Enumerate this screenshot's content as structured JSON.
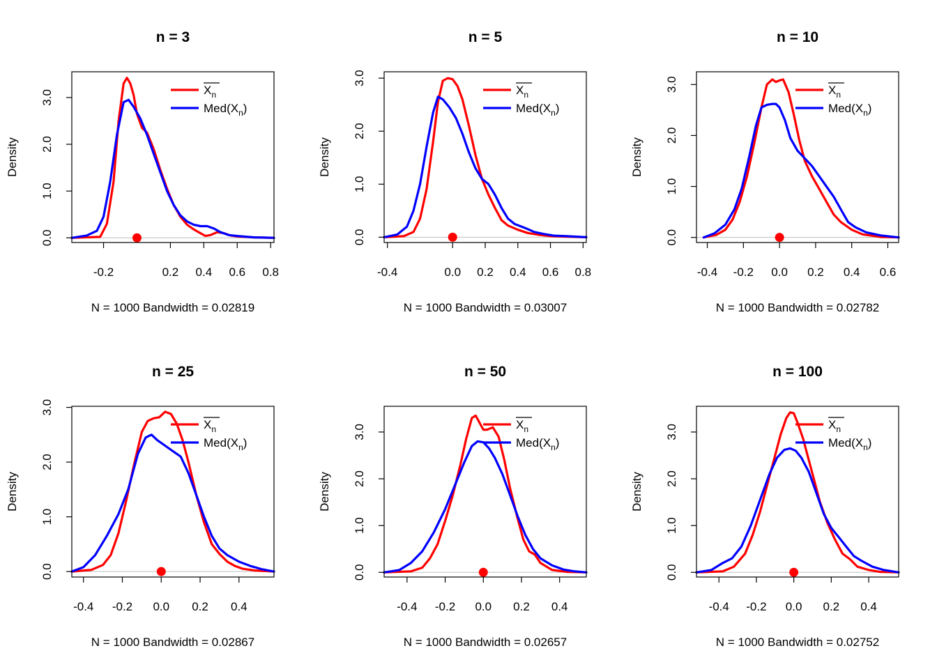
{
  "colors": {
    "mean": "#ff0000",
    "median": "#0000ff",
    "zero_line": "#bebebe",
    "point": "#ff0000"
  },
  "legend": {
    "mean_label": "X",
    "mean_sub": "n",
    "median_label": "Med(X",
    "median_sub": "n",
    "median_close": ")"
  },
  "ylabel": "Density",
  "chart_data": [
    {
      "type": "line",
      "title": "n =  3",
      "xlabel": "N = 1000   Bandwidth = 0.02819",
      "xlim": [
        -0.39,
        0.82
      ],
      "ylim": [
        -0.1,
        3.55
      ],
      "xticks": [
        {
          "v": -0.2,
          "l": "-0.2"
        },
        {
          "v": 0.2,
          "l": "0.2"
        },
        {
          "v": 0.4,
          "l": "0.4"
        },
        {
          "v": 0.6,
          "l": "0.6"
        },
        {
          "v": 0.8,
          "l": "0.8"
        }
      ],
      "yticks": [
        {
          "v": 0,
          "l": "0.0"
        },
        {
          "v": 1,
          "l": "1.0"
        },
        {
          "v": 2,
          "l": "2.0"
        },
        {
          "v": 3,
          "l": "3.0"
        }
      ],
      "point": {
        "x": 0,
        "y": 0
      },
      "legend_placement": "top-right",
      "series": [
        {
          "key": "mean",
          "x": [
            -0.39,
            -0.22,
            -0.18,
            -0.14,
            -0.11,
            -0.08,
            -0.06,
            -0.04,
            -0.02,
            0.0,
            0.03,
            0.06,
            0.1,
            0.14,
            0.18,
            0.22,
            0.26,
            0.3,
            0.34,
            0.38,
            0.41,
            0.44,
            0.48,
            0.52,
            0.56,
            0.6,
            0.7,
            0.82
          ],
          "y": [
            0,
            0.02,
            0.3,
            1.2,
            2.5,
            3.3,
            3.42,
            3.3,
            3.05,
            2.65,
            2.35,
            2.25,
            1.9,
            1.45,
            1.05,
            0.7,
            0.45,
            0.28,
            0.18,
            0.1,
            0.04,
            0.06,
            0.12,
            0.1,
            0.05,
            0.03,
            0.01,
            0
          ]
        },
        {
          "key": "median",
          "x": [
            -0.39,
            -0.3,
            -0.24,
            -0.2,
            -0.16,
            -0.12,
            -0.08,
            -0.05,
            -0.02,
            0.02,
            0.06,
            0.1,
            0.14,
            0.18,
            0.22,
            0.26,
            0.3,
            0.34,
            0.38,
            0.42,
            0.46,
            0.5,
            0.55,
            0.6,
            0.7,
            0.82
          ],
          "y": [
            0,
            0.05,
            0.15,
            0.45,
            1.2,
            2.2,
            2.9,
            2.95,
            2.8,
            2.55,
            2.2,
            1.8,
            1.4,
            1.0,
            0.7,
            0.48,
            0.35,
            0.28,
            0.25,
            0.25,
            0.2,
            0.12,
            0.06,
            0.04,
            0.01,
            0
          ]
        }
      ]
    },
    {
      "type": "line",
      "title": "n =  5",
      "xlabel": "N = 1000   Bandwidth = 0.03007",
      "xlim": [
        -0.42,
        0.82
      ],
      "ylim": [
        -0.1,
        3.12
      ],
      "xticks": [
        {
          "v": -0.4,
          "l": "-0.4"
        },
        {
          "v": 0,
          "l": "0.0"
        },
        {
          "v": 0.2,
          "l": "0.2"
        },
        {
          "v": 0.4,
          "l": "0.4"
        },
        {
          "v": 0.6,
          "l": "0.6"
        },
        {
          "v": 0.8,
          "l": "0.8"
        }
      ],
      "yticks": [
        {
          "v": 0,
          "l": "0.0"
        },
        {
          "v": 1,
          "l": "1.0"
        },
        {
          "v": 2,
          "l": "2.0"
        },
        {
          "v": 3,
          "l": "3.0"
        }
      ],
      "point": {
        "x": 0,
        "y": 0
      },
      "legend_placement": "top-right",
      "series": [
        {
          "key": "mean",
          "x": [
            -0.42,
            -0.3,
            -0.24,
            -0.2,
            -0.16,
            -0.12,
            -0.09,
            -0.06,
            -0.03,
            0.0,
            0.03,
            0.06,
            0.1,
            0.14,
            0.18,
            0.22,
            0.26,
            0.3,
            0.34,
            0.4,
            0.46,
            0.52,
            0.6,
            0.7,
            0.82
          ],
          "y": [
            0,
            0.02,
            0.1,
            0.35,
            0.9,
            1.8,
            2.55,
            2.95,
            3.0,
            2.98,
            2.85,
            2.6,
            2.1,
            1.55,
            1.1,
            0.8,
            0.55,
            0.32,
            0.22,
            0.14,
            0.08,
            0.05,
            0.02,
            0.01,
            0
          ]
        },
        {
          "key": "median",
          "x": [
            -0.42,
            -0.34,
            -0.28,
            -0.24,
            -0.2,
            -0.16,
            -0.12,
            -0.09,
            -0.06,
            -0.02,
            0.02,
            0.06,
            0.1,
            0.14,
            0.18,
            0.22,
            0.26,
            0.3,
            0.34,
            0.38,
            0.44,
            0.5,
            0.56,
            0.62,
            0.7,
            0.82
          ],
          "y": [
            0,
            0.05,
            0.2,
            0.5,
            1.0,
            1.7,
            2.35,
            2.65,
            2.6,
            2.45,
            2.25,
            1.95,
            1.6,
            1.3,
            1.1,
            1.0,
            0.8,
            0.55,
            0.35,
            0.25,
            0.18,
            0.1,
            0.06,
            0.03,
            0.02,
            0
          ]
        }
      ]
    },
    {
      "type": "line",
      "title": "n =  10",
      "xlabel": "N = 1000   Bandwidth = 0.02782",
      "xlim": [
        -0.46,
        0.66
      ],
      "ylim": [
        -0.1,
        3.25
      ],
      "xticks": [
        {
          "v": -0.4,
          "l": "-0.4"
        },
        {
          "v": -0.2,
          "l": "-0.2"
        },
        {
          "v": 0,
          "l": "0.0"
        },
        {
          "v": 0.2,
          "l": "0.2"
        },
        {
          "v": 0.4,
          "l": "0.4"
        },
        {
          "v": 0.6,
          "l": "0.6"
        }
      ],
      "yticks": [
        {
          "v": 0,
          "l": "0.0"
        },
        {
          "v": 1,
          "l": "1.0"
        },
        {
          "v": 2,
          "l": "2.0"
        },
        {
          "v": 3,
          "l": "3.0"
        }
      ],
      "point": {
        "x": 0,
        "y": 0
      },
      "legend_placement": "top-right",
      "series": [
        {
          "key": "mean",
          "x": [
            -0.42,
            -0.35,
            -0.3,
            -0.26,
            -0.22,
            -0.18,
            -0.14,
            -0.1,
            -0.07,
            -0.04,
            -0.02,
            0.0,
            0.02,
            0.05,
            0.08,
            0.11,
            0.14,
            0.18,
            0.22,
            0.26,
            0.3,
            0.34,
            0.4,
            0.46,
            0.56,
            0.66
          ],
          "y": [
            0,
            0.05,
            0.15,
            0.35,
            0.7,
            1.2,
            1.85,
            2.55,
            3.0,
            3.1,
            3.05,
            3.08,
            3.1,
            2.85,
            2.4,
            1.9,
            1.5,
            1.2,
            0.95,
            0.7,
            0.45,
            0.3,
            0.15,
            0.06,
            0.01,
            0
          ]
        },
        {
          "key": "median",
          "x": [
            -0.42,
            -0.36,
            -0.3,
            -0.25,
            -0.21,
            -0.17,
            -0.13,
            -0.1,
            -0.07,
            -0.04,
            -0.02,
            0.0,
            0.03,
            0.06,
            0.1,
            0.14,
            0.18,
            0.22,
            0.26,
            0.3,
            0.34,
            0.38,
            0.42,
            0.48,
            0.56,
            0.66
          ],
          "y": [
            0,
            0.08,
            0.25,
            0.55,
            0.95,
            1.55,
            2.2,
            2.55,
            2.6,
            2.62,
            2.62,
            2.55,
            2.3,
            1.95,
            1.7,
            1.55,
            1.4,
            1.2,
            1.0,
            0.8,
            0.55,
            0.3,
            0.2,
            0.1,
            0.04,
            0
          ]
        }
      ]
    },
    {
      "type": "line",
      "title": "n =  25",
      "xlabel": "N = 1000   Bandwidth = 0.02867",
      "xlim": [
        -0.46,
        0.58
      ],
      "ylim": [
        -0.1,
        3.02
      ],
      "xticks": [
        {
          "v": -0.4,
          "l": "-0.4"
        },
        {
          "v": -0.2,
          "l": "-0.2"
        },
        {
          "v": 0,
          "l": "0.0"
        },
        {
          "v": 0.2,
          "l": "0.2"
        },
        {
          "v": 0.4,
          "l": "0.4"
        }
      ],
      "yticks": [
        {
          "v": 0,
          "l": "0.0"
        },
        {
          "v": 1,
          "l": "1.0"
        },
        {
          "v": 2,
          "l": "2.0"
        },
        {
          "v": 3,
          "l": "3.0"
        }
      ],
      "point": {
        "x": 0,
        "y": 0
      },
      "legend_placement": "top-right",
      "series": [
        {
          "key": "mean",
          "x": [
            -0.46,
            -0.36,
            -0.3,
            -0.26,
            -0.22,
            -0.18,
            -0.14,
            -0.1,
            -0.07,
            -0.04,
            -0.01,
            0.02,
            0.05,
            0.08,
            0.11,
            0.14,
            0.18,
            0.22,
            0.26,
            0.3,
            0.34,
            0.38,
            0.42,
            0.48,
            0.58
          ],
          "y": [
            0,
            0.03,
            0.12,
            0.3,
            0.7,
            1.3,
            1.95,
            2.55,
            2.75,
            2.8,
            2.82,
            2.92,
            2.88,
            2.7,
            2.4,
            2.0,
            1.4,
            0.9,
            0.5,
            0.32,
            0.18,
            0.1,
            0.05,
            0.02,
            0
          ]
        },
        {
          "key": "median",
          "x": [
            -0.46,
            -0.4,
            -0.34,
            -0.28,
            -0.22,
            -0.17,
            -0.12,
            -0.08,
            -0.05,
            -0.02,
            0.02,
            0.06,
            0.1,
            0.14,
            0.18,
            0.22,
            0.26,
            0.3,
            0.34,
            0.4,
            0.46,
            0.52,
            0.58
          ],
          "y": [
            0,
            0.08,
            0.3,
            0.65,
            1.05,
            1.5,
            2.15,
            2.45,
            2.5,
            2.4,
            2.3,
            2.2,
            2.1,
            1.8,
            1.4,
            1.0,
            0.65,
            0.42,
            0.3,
            0.18,
            0.1,
            0.04,
            0
          ]
        }
      ]
    },
    {
      "type": "line",
      "title": "n =  50",
      "xlabel": "N = 1000   Bandwidth = 0.02657",
      "xlim": [
        -0.52,
        0.54
      ],
      "ylim": [
        -0.1,
        3.55
      ],
      "xticks": [
        {
          "v": -0.4,
          "l": "-0.4"
        },
        {
          "v": -0.2,
          "l": "-0.2"
        },
        {
          "v": 0,
          "l": "0.0"
        },
        {
          "v": 0.2,
          "l": "0.2"
        },
        {
          "v": 0.4,
          "l": "0.4"
        }
      ],
      "yticks": [
        {
          "v": 0,
          "l": "0.0"
        },
        {
          "v": 1,
          "l": "1.0"
        },
        {
          "v": 2,
          "l": "2.0"
        },
        {
          "v": 3,
          "l": "3.0"
        }
      ],
      "point": {
        "x": 0,
        "y": 0
      },
      "legend_placement": "top-right",
      "series": [
        {
          "key": "mean",
          "x": [
            -0.52,
            -0.38,
            -0.32,
            -0.28,
            -0.24,
            -0.2,
            -0.16,
            -0.12,
            -0.09,
            -0.06,
            -0.04,
            -0.02,
            0.0,
            0.02,
            0.05,
            0.08,
            0.11,
            0.14,
            0.18,
            0.21,
            0.24,
            0.27,
            0.3,
            0.36,
            0.44,
            0.54
          ],
          "y": [
            0,
            0.02,
            0.1,
            0.3,
            0.6,
            1.1,
            1.65,
            2.3,
            2.85,
            3.3,
            3.35,
            3.2,
            3.05,
            3.05,
            3.1,
            2.9,
            2.4,
            1.8,
            1.15,
            0.7,
            0.45,
            0.38,
            0.2,
            0.05,
            0.01,
            0
          ]
        },
        {
          "key": "median",
          "x": [
            -0.52,
            -0.44,
            -0.38,
            -0.32,
            -0.26,
            -0.2,
            -0.15,
            -0.1,
            -0.06,
            -0.03,
            0.0,
            0.03,
            0.06,
            0.1,
            0.14,
            0.18,
            0.22,
            0.26,
            0.3,
            0.36,
            0.42,
            0.48,
            0.54
          ],
          "y": [
            0,
            0.05,
            0.2,
            0.45,
            0.85,
            1.35,
            1.85,
            2.35,
            2.7,
            2.8,
            2.78,
            2.65,
            2.45,
            2.1,
            1.65,
            1.2,
            0.8,
            0.5,
            0.3,
            0.15,
            0.06,
            0.02,
            0
          ]
        }
      ]
    },
    {
      "type": "line",
      "title": "n =  100",
      "xlabel": "N = 1000   Bandwidth = 0.02752",
      "xlim": [
        -0.52,
        0.56
      ],
      "ylim": [
        -0.1,
        3.55
      ],
      "xticks": [
        {
          "v": -0.4,
          "l": "-0.4"
        },
        {
          "v": -0.2,
          "l": "-0.2"
        },
        {
          "v": 0,
          "l": "0.0"
        },
        {
          "v": 0.2,
          "l": "0.2"
        },
        {
          "v": 0.4,
          "l": "0.4"
        }
      ],
      "yticks": [
        {
          "v": 0,
          "l": "0.0"
        },
        {
          "v": 1,
          "l": "1.0"
        },
        {
          "v": 2,
          "l": "2.0"
        },
        {
          "v": 3,
          "l": "3.0"
        }
      ],
      "point": {
        "x": 0,
        "y": 0
      },
      "legend_placement": "top-right",
      "series": [
        {
          "key": "mean",
          "x": [
            -0.52,
            -0.38,
            -0.32,
            -0.26,
            -0.22,
            -0.18,
            -0.14,
            -0.1,
            -0.07,
            -0.04,
            -0.02,
            0.0,
            0.02,
            0.05,
            0.08,
            0.11,
            0.14,
            0.18,
            0.22,
            0.26,
            0.3,
            0.34,
            0.4,
            0.46,
            0.56
          ],
          "y": [
            0,
            0.02,
            0.12,
            0.4,
            0.8,
            1.3,
            1.9,
            2.5,
            2.95,
            3.3,
            3.42,
            3.4,
            3.2,
            2.85,
            2.4,
            1.95,
            1.5,
            1.05,
            0.7,
            0.4,
            0.28,
            0.12,
            0.05,
            0.01,
            0
          ]
        },
        {
          "key": "median",
          "x": [
            -0.52,
            -0.44,
            -0.38,
            -0.33,
            -0.28,
            -0.23,
            -0.18,
            -0.13,
            -0.09,
            -0.05,
            -0.02,
            0.01,
            0.04,
            0.08,
            0.12,
            0.16,
            0.2,
            0.24,
            0.28,
            0.32,
            0.36,
            0.42,
            0.48,
            0.56
          ],
          "y": [
            0,
            0.05,
            0.2,
            0.3,
            0.55,
            1.0,
            1.55,
            2.1,
            2.45,
            2.62,
            2.65,
            2.6,
            2.45,
            2.15,
            1.7,
            1.25,
            0.95,
            0.75,
            0.55,
            0.35,
            0.25,
            0.12,
            0.05,
            0
          ]
        }
      ]
    }
  ]
}
